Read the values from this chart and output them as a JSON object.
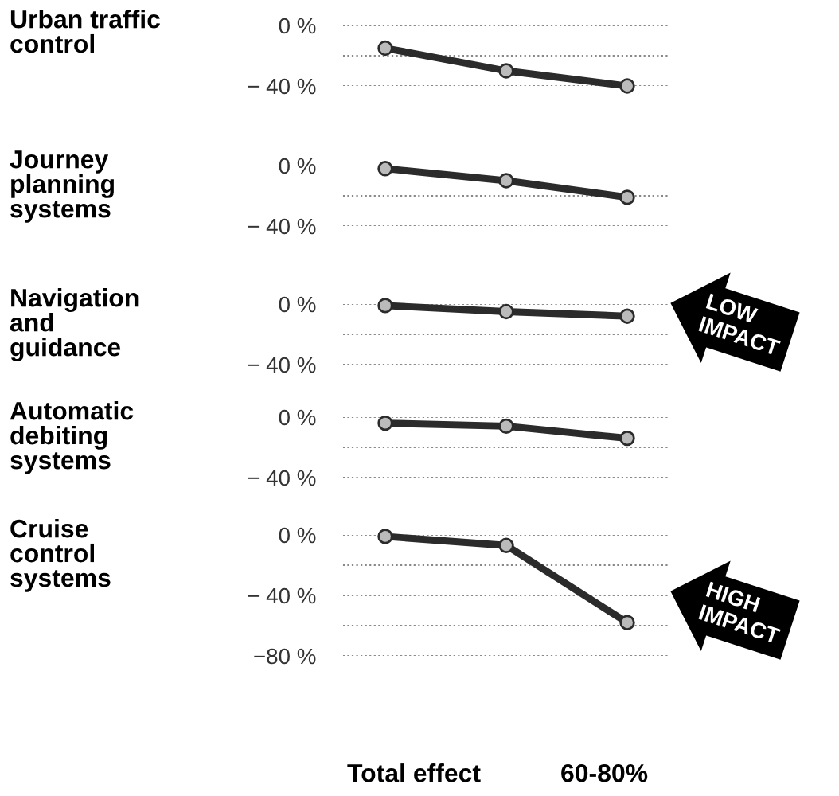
{
  "chart_data": [
    {
      "type": "line",
      "title": "Urban traffic\ncontrol",
      "categories": [
        null,
        null,
        null
      ],
      "values": [
        -15,
        -30,
        -40
      ],
      "color": "#2b2b2b",
      "marker": "circle",
      "ylim": [
        -40,
        0
      ],
      "yticks": [
        {
          "value": 0,
          "label": "0 %"
        },
        {
          "value": -20,
          "label": null
        },
        {
          "value": -40,
          "label": "− 40 %"
        }
      ],
      "grid": "y",
      "tick_labels": "y"
    },
    {
      "type": "line",
      "title": "Journey\nplanning\nsystems",
      "categories": [
        null,
        null,
        null
      ],
      "values": [
        -2,
        -10,
        -21
      ],
      "color": "#2b2b2b",
      "marker": "circle",
      "ylim": [
        -40,
        0
      ],
      "yticks": [
        {
          "value": 0,
          "label": "0 %"
        },
        {
          "value": -20,
          "label": null
        },
        {
          "value": -40,
          "label": "− 40 %"
        }
      ],
      "grid": "y",
      "tick_labels": "y"
    },
    {
      "type": "line",
      "title": "Navigation\nand\nguidance",
      "categories": [
        null,
        null,
        null
      ],
      "values": [
        -1,
        -5,
        -8
      ],
      "color": "#2b2b2b",
      "marker": "circle",
      "ylim": [
        -40,
        0
      ],
      "yticks": [
        {
          "value": 0,
          "label": "0 %"
        },
        {
          "value": -20,
          "label": null
        },
        {
          "value": -40,
          "label": "− 40 %"
        }
      ],
      "grid": "y",
      "tick_labels": "y",
      "annotations": [
        "LOW\nIMPACT"
      ]
    },
    {
      "type": "line",
      "title": "Automatic\ndebiting\nsystems",
      "categories": [
        null,
        null,
        null
      ],
      "values": [
        -4,
        -6,
        -14
      ],
      "color": "#2b2b2b",
      "marker": "circle",
      "ylim": [
        -40,
        0
      ],
      "yticks": [
        {
          "value": 0,
          "label": "0 %"
        },
        {
          "value": -20,
          "label": null
        },
        {
          "value": -40,
          "label": "− 40 %"
        }
      ],
      "grid": "y",
      "tick_labels": "y"
    },
    {
      "type": "line",
      "title": "Cruise\ncontrol\nsystems",
      "categories": [
        null,
        null,
        null
      ],
      "values": [
        -1,
        -7,
        -58
      ],
      "color": "#2b2b2b",
      "marker": "circle",
      "ylim": [
        -80,
        0
      ],
      "yticks": [
        {
          "value": 0,
          "label": "0 %"
        },
        {
          "value": -20,
          "label": null
        },
        {
          "value": -40,
          "label": "− 40 %"
        },
        {
          "value": -60,
          "label": null
        },
        {
          "value": -80,
          "label": "−80 %"
        }
      ],
      "grid": "y",
      "tick_labels": "y",
      "annotations": [
        "HIGH\nIMPACT",
        "Total effect",
        "60-80%"
      ]
    }
  ]
}
